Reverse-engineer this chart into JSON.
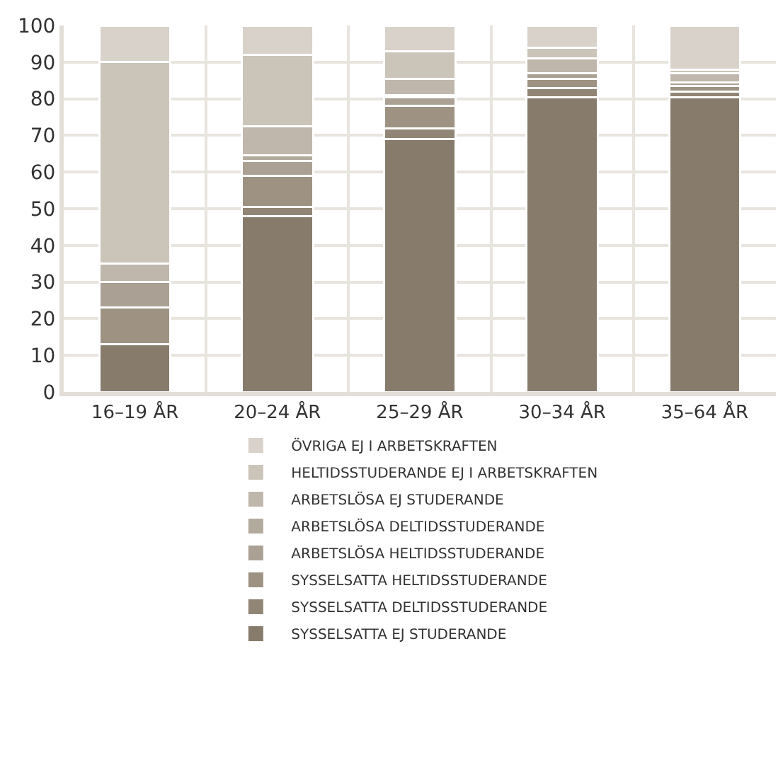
{
  "chart_data": {
    "type": "bar",
    "stacked": true,
    "categories": [
      "16–19 ÅR",
      "20–24 ÅR",
      "25–29 ÅR",
      "30–34 ÅR",
      "35–64 ÅR"
    ],
    "series": [
      {
        "name": "SYSSELSATTA EJ STUDERANDE",
        "color": "#877c6c",
        "values": [
          13,
          48,
          69,
          80.5,
          80.5
        ]
      },
      {
        "name": "SYSSELSATTA DELTIDSSTUDERANDE",
        "color": "#918575",
        "values": [
          0,
          2.5,
          3,
          2.5,
          1.5
        ]
      },
      {
        "name": "SYSSELSATTA HELTIDSSTUDERANDE",
        "color": "#9e9383",
        "values": [
          10,
          8.5,
          6,
          2.5,
          1.5
        ]
      },
      {
        "name": "ARBETSLÖSA HELTIDSSTUDERANDE",
        "color": "#aaa093",
        "values": [
          7,
          4,
          2.5,
          1.5,
          1
        ]
      },
      {
        "name": "ARBETSLÖSA DELTIDSSTUDERANDE",
        "color": "#b3aa9e",
        "values": [
          0,
          1.5,
          0.5,
          0,
          0
        ]
      },
      {
        "name": "ARBETSLÖSA EJ STUDERANDE",
        "color": "#bfb7ab",
        "values": [
          5,
          8,
          4.5,
          4,
          2.5
        ]
      },
      {
        "name": "HELTIDSSTUDERANDE EJ I ARBETSKRAFTEN",
        "color": "#cbc4b9",
        "values": [
          55,
          19.5,
          7.5,
          3,
          1
        ]
      },
      {
        "name": "ÖVRIGA EJ I ARBETSKRAFTEN",
        "color": "#d8d2cb",
        "values": [
          10,
          8,
          7,
          6,
          12
        ]
      }
    ],
    "ylim": [
      0,
      100
    ],
    "yticks": [
      0,
      10,
      20,
      30,
      40,
      50,
      60,
      70,
      80,
      90,
      100
    ],
    "grid": true,
    "legend": "bottom"
  }
}
